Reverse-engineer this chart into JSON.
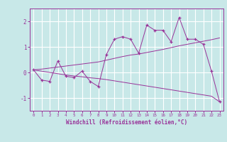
{
  "x": [
    0,
    1,
    2,
    3,
    4,
    5,
    6,
    7,
    8,
    9,
    10,
    11,
    12,
    13,
    14,
    15,
    16,
    17,
    18,
    19,
    20,
    21,
    22,
    23
  ],
  "y_main": [
    0.1,
    -0.3,
    -0.35,
    0.45,
    -0.15,
    -0.2,
    0.05,
    -0.35,
    -0.55,
    0.7,
    1.3,
    1.4,
    1.3,
    0.75,
    1.85,
    1.65,
    1.65,
    1.2,
    2.15,
    1.3,
    1.3,
    1.1,
    0.05,
    -1.15
  ],
  "y_trend1": [
    0.1,
    0.13,
    0.17,
    0.21,
    0.25,
    0.29,
    0.33,
    0.37,
    0.41,
    0.48,
    0.55,
    0.62,
    0.68,
    0.72,
    0.78,
    0.84,
    0.9,
    0.97,
    1.04,
    1.1,
    1.16,
    1.22,
    1.28,
    1.35
  ],
  "y_trend2": [
    0.1,
    0.05,
    0.0,
    -0.05,
    -0.1,
    -0.14,
    -0.17,
    -0.21,
    -0.24,
    -0.28,
    -0.33,
    -0.38,
    -0.43,
    -0.48,
    -0.53,
    -0.58,
    -0.63,
    -0.68,
    -0.73,
    -0.78,
    -0.83,
    -0.88,
    -0.93,
    -1.15
  ],
  "background_color": "#c8e8e8",
  "grid_color": "#ffffff",
  "line_color": "#993399",
  "xlabel": "Windchill (Refroidissement éolien,°C)",
  "xlim": [
    -0.5,
    23.5
  ],
  "ylim": [
    -1.5,
    2.5
  ],
  "yticks": [
    -1,
    0,
    1,
    2
  ],
  "xticks": [
    0,
    1,
    2,
    3,
    4,
    5,
    6,
    7,
    8,
    9,
    10,
    11,
    12,
    13,
    14,
    15,
    16,
    17,
    18,
    19,
    20,
    21,
    22,
    23
  ]
}
